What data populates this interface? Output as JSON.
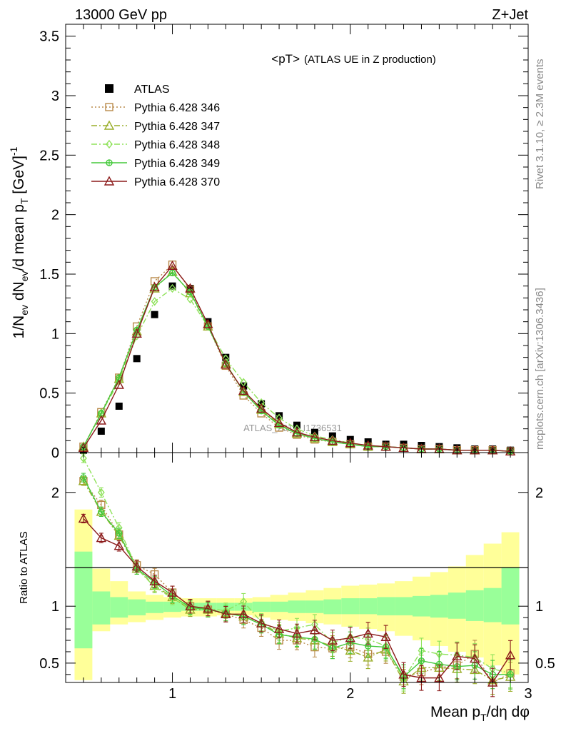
{
  "header": {
    "left": "13000 GeV pp",
    "right": "Z+Jet"
  },
  "side_labels": {
    "rivet": "Rivet 3.1.10, ≥ 2.3M events",
    "mcplots": "mcplots.cern.ch [arXiv:1306.3436]"
  },
  "watermark": "ATLAS_2019_I1736531",
  "chart_data": [
    {
      "type": "line",
      "title_main": "<pT>",
      "title_sub": "(ATLAS UE in Z production)",
      "ylabel": "1/N_ev dN_ev/d mean p_T [GeV]^-1",
      "xlabel": "Mean p_T/dη dφ",
      "xlim": [
        0.4,
        3.0
      ],
      "ylim": [
        0,
        3.6
      ],
      "xticks": [
        "1",
        "2",
        "3"
      ],
      "yticks": [
        "0",
        "0.5",
        "1",
        "1.5",
        "2",
        "2.5",
        "3",
        "3.5"
      ],
      "legend_position": "top-left",
      "x": [
        0.5,
        0.6,
        0.7,
        0.8,
        0.9,
        1.0,
        1.1,
        1.2,
        1.3,
        1.4,
        1.5,
        1.6,
        1.7,
        1.8,
        1.9,
        2.0,
        2.1,
        2.2,
        2.3,
        2.4,
        2.5,
        2.6,
        2.7,
        2.8,
        2.9
      ],
      "series": [
        {
          "name": "ATLAS",
          "color": "#000000",
          "marker": "square-filled",
          "line": "none",
          "values": [
            0.02,
            0.18,
            0.39,
            0.79,
            1.16,
            1.4,
            1.38,
            1.1,
            0.8,
            0.56,
            0.41,
            0.31,
            0.23,
            0.17,
            0.14,
            0.11,
            0.09,
            0.07,
            0.07,
            0.06,
            0.05,
            0.04,
            0.03,
            0.03,
            0.02
          ]
        },
        {
          "name": "Pythia 6.428 346",
          "color": "#b98a4a",
          "marker": "square-open",
          "line": "dotted",
          "values": [
            0.05,
            0.34,
            0.63,
            1.06,
            1.44,
            1.58,
            1.37,
            1.06,
            0.73,
            0.48,
            0.33,
            0.21,
            0.15,
            0.11,
            0.09,
            0.07,
            0.05,
            0.05,
            0.04,
            0.03,
            0.03,
            0.02,
            0.02,
            0.02,
            0.01
          ]
        },
        {
          "name": "Pythia 6.428 347",
          "color": "#9aae2a",
          "marker": "triangle-open",
          "line": "dash-dot",
          "values": [
            0.05,
            0.33,
            0.62,
            1.02,
            1.38,
            1.52,
            1.34,
            1.06,
            0.75,
            0.51,
            0.36,
            0.24,
            0.16,
            0.12,
            0.09,
            0.07,
            0.05,
            0.05,
            0.04,
            0.03,
            0.03,
            0.02,
            0.02,
            0.02,
            0.01
          ]
        },
        {
          "name": "Pythia 6.428 348",
          "color": "#8fe25a",
          "marker": "diamond-open",
          "line": "dash-dot",
          "values": [
            0.05,
            0.33,
            0.6,
            0.98,
            1.27,
            1.38,
            1.29,
            1.06,
            0.79,
            0.59,
            0.42,
            0.29,
            0.2,
            0.14,
            0.11,
            0.08,
            0.06,
            0.05,
            0.04,
            0.03,
            0.03,
            0.02,
            0.02,
            0.02,
            0.01
          ]
        },
        {
          "name": "Pythia 6.428 349",
          "color": "#43c93a",
          "marker": "circle-plus",
          "line": "solid",
          "values": [
            0.05,
            0.33,
            0.63,
            1.03,
            1.39,
            1.51,
            1.35,
            1.06,
            0.75,
            0.51,
            0.35,
            0.23,
            0.16,
            0.12,
            0.09,
            0.07,
            0.05,
            0.05,
            0.04,
            0.03,
            0.03,
            0.02,
            0.02,
            0.02,
            0.01
          ]
        },
        {
          "name": "Pythia 6.428 370",
          "color": "#8b1a1a",
          "marker": "triangle-open",
          "line": "solid",
          "values": [
            0.04,
            0.27,
            0.57,
            1.0,
            1.39,
            1.57,
            1.38,
            1.08,
            0.74,
            0.52,
            0.37,
            0.25,
            0.17,
            0.13,
            0.1,
            0.08,
            0.06,
            0.05,
            0.04,
            0.03,
            0.03,
            0.02,
            0.02,
            0.02,
            0.01
          ]
        }
      ]
    },
    {
      "type": "line",
      "ylabel": "Ratio to ATLAS",
      "xlim": [
        0.4,
        3.0
      ],
      "ylim": [
        0.33,
        2.35
      ],
      "yticks": [
        "0.5",
        "1",
        "2"
      ],
      "reference_line": 1,
      "band_inner_color": "#99ff99",
      "band_outer_color": "#ffff99",
      "band_inner": [
        [
          0.63,
          1.48
        ],
        [
          0.84,
          1.13
        ],
        [
          0.9,
          1.08
        ],
        [
          0.92,
          1.06
        ],
        [
          0.94,
          1.04
        ],
        [
          0.95,
          1.04
        ],
        [
          0.96,
          1.03
        ],
        [
          0.96,
          1.03
        ],
        [
          0.96,
          1.03
        ],
        [
          0.96,
          1.03
        ],
        [
          0.95,
          1.04
        ],
        [
          0.95,
          1.04
        ],
        [
          0.94,
          1.05
        ],
        [
          0.94,
          1.05
        ],
        [
          0.93,
          1.06
        ],
        [
          0.93,
          1.07
        ],
        [
          0.93,
          1.07
        ],
        [
          0.92,
          1.08
        ],
        [
          0.92,
          1.08
        ],
        [
          0.91,
          1.09
        ],
        [
          0.9,
          1.1
        ],
        [
          0.89,
          1.12
        ],
        [
          0.87,
          1.14
        ],
        [
          0.86,
          1.16
        ],
        [
          0.84,
          1.34
        ]
      ],
      "band_outer": [
        [
          0.35,
          1.85
        ],
        [
          0.78,
          1.33
        ],
        [
          0.84,
          1.22
        ],
        [
          0.86,
          1.13
        ],
        [
          0.88,
          1.1
        ],
        [
          0.9,
          1.08
        ],
        [
          0.91,
          1.07
        ],
        [
          0.91,
          1.07
        ],
        [
          0.92,
          1.07
        ],
        [
          0.92,
          1.07
        ],
        [
          0.9,
          1.08
        ],
        [
          0.88,
          1.1
        ],
        [
          0.87,
          1.12
        ],
        [
          0.85,
          1.14
        ],
        [
          0.84,
          1.16
        ],
        [
          0.82,
          1.18
        ],
        [
          0.8,
          1.19
        ],
        [
          0.78,
          1.2
        ],
        [
          0.74,
          1.22
        ],
        [
          0.7,
          1.26
        ],
        [
          0.65,
          1.3
        ],
        [
          0.6,
          1.35
        ],
        [
          0.55,
          1.45
        ],
        [
          0.48,
          1.55
        ],
        [
          0.4,
          1.65
        ]
      ],
      "series": [
        {
          "name": "Pythia 6.428 346",
          "values": [
            2.1,
            1.89,
            1.63,
            1.36,
            1.28,
            1.12,
            1.0,
            0.97,
            0.93,
            0.88,
            0.81,
            0.7,
            0.7,
            0.64,
            0.63,
            0.64,
            0.58,
            0.6,
            0.38,
            0.42,
            0.46,
            0.48,
            0.58,
            0.32,
            0.41
          ]
        },
        {
          "name": "Pythia 6.428 347",
          "values": [
            2.1,
            1.83,
            1.62,
            1.33,
            1.18,
            1.08,
            0.97,
            0.97,
            0.94,
            0.91,
            0.85,
            0.76,
            0.72,
            0.7,
            0.65,
            0.61,
            0.55,
            0.62,
            0.34,
            0.46,
            0.46,
            0.45,
            0.44,
            0.35,
            0.38
          ]
        },
        {
          "name": "Pythia 6.428 348",
          "values": [
            2.3,
            2.0,
            1.69,
            1.33,
            1.17,
            1.07,
            0.98,
            0.98,
            0.96,
            1.04,
            0.86,
            0.78,
            0.81,
            0.84,
            0.68,
            0.73,
            0.71,
            0.65,
            0.36,
            0.61,
            0.58,
            0.57,
            0.55,
            0.45,
            0.41
          ]
        },
        {
          "name": "Pythia 6.428 349",
          "values": [
            2.13,
            1.83,
            1.64,
            1.33,
            1.21,
            1.09,
            0.99,
            0.97,
            0.94,
            0.91,
            0.84,
            0.75,
            0.73,
            0.71,
            0.63,
            0.68,
            0.65,
            0.64,
            0.38,
            0.52,
            0.49,
            0.47,
            0.48,
            0.4,
            0.4
          ]
        },
        {
          "name": "Pythia 6.428 370",
          "values": [
            1.77,
            1.6,
            1.53,
            1.35,
            1.22,
            1.12,
            1.0,
            0.98,
            0.93,
            0.93,
            0.85,
            0.8,
            0.76,
            0.79,
            0.7,
            0.72,
            0.76,
            0.73,
            0.4,
            0.37,
            0.37,
            0.56,
            0.54,
            0.33,
            0.57
          ]
        }
      ]
    }
  ]
}
